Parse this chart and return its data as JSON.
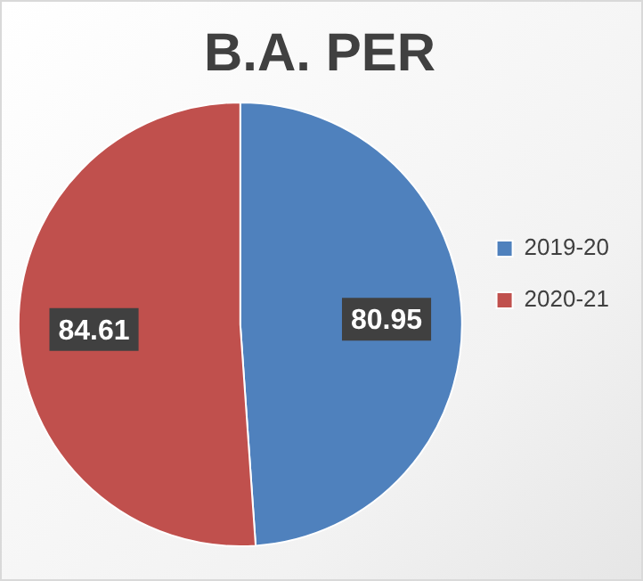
{
  "chart_data": {
    "type": "pie",
    "title": "B.A. PER",
    "categories": [
      "2019-20",
      "2020-21"
    ],
    "values": [
      80.95,
      84.61
    ],
    "colors": [
      "#4f81bd",
      "#c0504d"
    ],
    "data_labels": true,
    "legend": "right"
  }
}
